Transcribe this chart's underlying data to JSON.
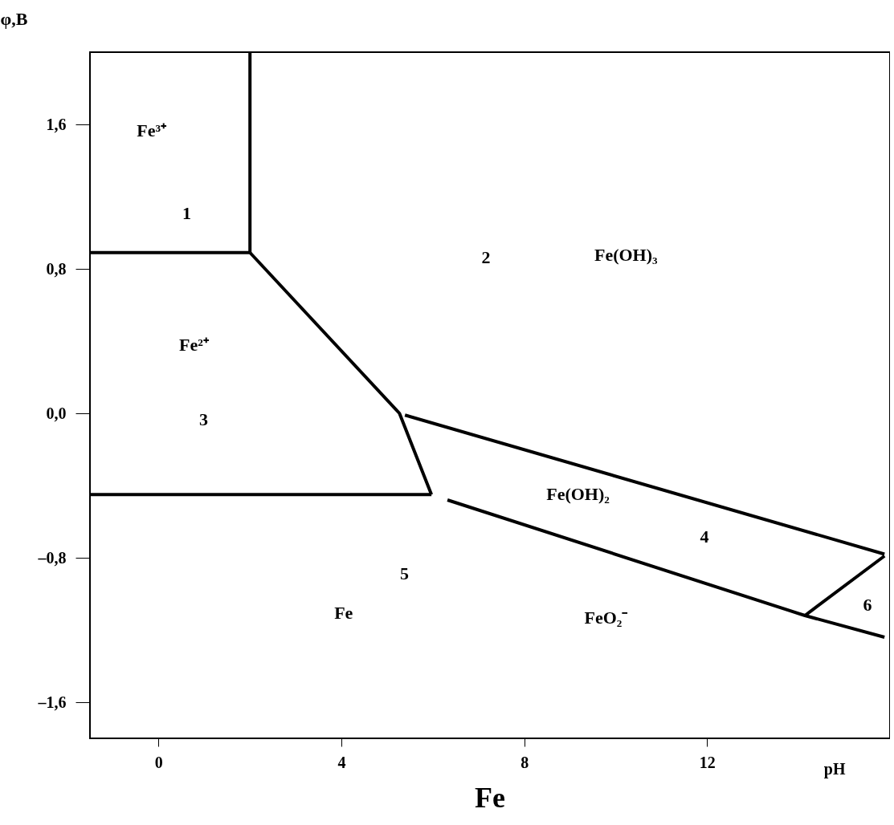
{
  "chart_data": {
    "type": "line",
    "title": "Fe",
    "xlabel": "pH",
    "ylabel": "φ,B",
    "xlim": [
      -1.5,
      16
    ],
    "ylim": [
      -1.8,
      2.0
    ],
    "xticks": [
      0,
      4,
      8,
      12
    ],
    "yticks": [
      {
        "value": 1.6,
        "label": "1,6"
      },
      {
        "value": 0.8,
        "label": "0,8"
      },
      {
        "value": 0,
        "label": "0,0"
      },
      {
        "value": -0.8,
        "label": "–0,8"
      },
      {
        "value": -1.6,
        "label": "–1,6"
      }
    ],
    "grid": false,
    "legend": false,
    "marker": "none",
    "line_style": "solid",
    "series": [
      {
        "color": "#000000",
        "x": [
          -1.5,
          2.0
        ],
        "values": [
          0.89,
          0.89
        ]
      },
      {
        "color": "#000000",
        "x": [
          2.0,
          2.0
        ],
        "values": [
          0.89,
          2.0
        ]
      },
      {
        "color": "#000000",
        "x": [
          2.0,
          5.27,
          5.97
        ],
        "values": [
          0.89,
          0.0,
          -0.45
        ]
      },
      {
        "color": "#000000",
        "x": [
          -1.5,
          5.97
        ],
        "values": [
          -0.45,
          -0.45
        ]
      },
      {
        "color": "#000000",
        "x": [
          5.39,
          15.88
        ],
        "values": [
          -0.01,
          -0.78
        ]
      },
      {
        "color": "#000000",
        "x": [
          6.32,
          14.14,
          15.88
        ],
        "values": [
          -0.48,
          -1.12,
          -1.24
        ]
      },
      {
        "color": "#000000",
        "x": [
          14.14,
          15.88
        ],
        "values": [
          -1.12,
          -0.79
        ]
      }
    ],
    "annotations": [
      "Fe³⁺",
      "1",
      "2",
      "Fe(OH)₃",
      "Fe²⁺",
      "3",
      "Fe(OH)₂",
      "4",
      "5",
      "Fe",
      "6",
      "FeO₂⁻"
    ]
  }
}
